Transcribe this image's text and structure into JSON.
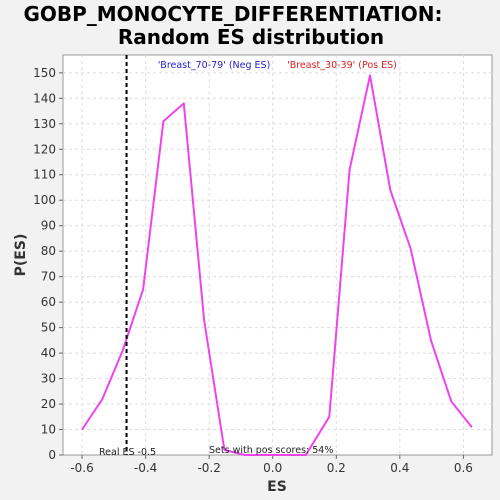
{
  "chart_data": {
    "type": "line",
    "title_line1": "GOBP_MONOCYTE_DIFFERENTIATION:",
    "title_line2": "Random ES distribution",
    "xlabel": "ES",
    "ylabel": "P(ES)",
    "xlim": [
      -0.66,
      0.69
    ],
    "ylim": [
      0,
      157
    ],
    "xticks": [
      -0.6,
      -0.4,
      -0.2,
      0.0,
      0.2,
      0.4,
      0.6
    ],
    "xtick_labels": [
      "-0.6",
      "-0.4",
      "-0.2",
      "0.0",
      "0.2",
      "0.4",
      "0.6"
    ],
    "yticks": [
      0,
      10,
      20,
      30,
      40,
      50,
      60,
      70,
      80,
      90,
      100,
      110,
      120,
      130,
      140,
      150
    ],
    "ytick_labels": [
      "0",
      "10",
      "20",
      "30",
      "40",
      "50",
      "60",
      "70",
      "80",
      "90",
      "100",
      "110",
      "120",
      "130",
      "140",
      "150"
    ],
    "grid": true,
    "series": [
      {
        "color": "#ee44ee",
        "x": [
          -0.6,
          -0.536,
          -0.472,
          -0.408,
          -0.344,
          -0.28,
          -0.216,
          -0.152,
          -0.088,
          -0.024,
          0.04,
          0.104,
          0.178,
          0.242,
          0.306,
          0.37,
          0.434,
          0.498,
          0.562,
          0.626
        ],
        "y": [
          10,
          22,
          41,
          65,
          131,
          138,
          53,
          2,
          0,
          0,
          0,
          0,
          15,
          112,
          149,
          104,
          81,
          45,
          21,
          11
        ]
      }
    ],
    "real_es": -0.46,
    "legend_neg": "'Breast_70-79' (Neg ES)",
    "legend_pos": "'Breast_30-39' (Pos ES)",
    "legend_neg_color": "#2222cc",
    "legend_pos_color": "#dd2222",
    "annotation_real_es": "Real ES -0.5",
    "annotation_pos_scores": "Sets with pos scores: 54%"
  }
}
